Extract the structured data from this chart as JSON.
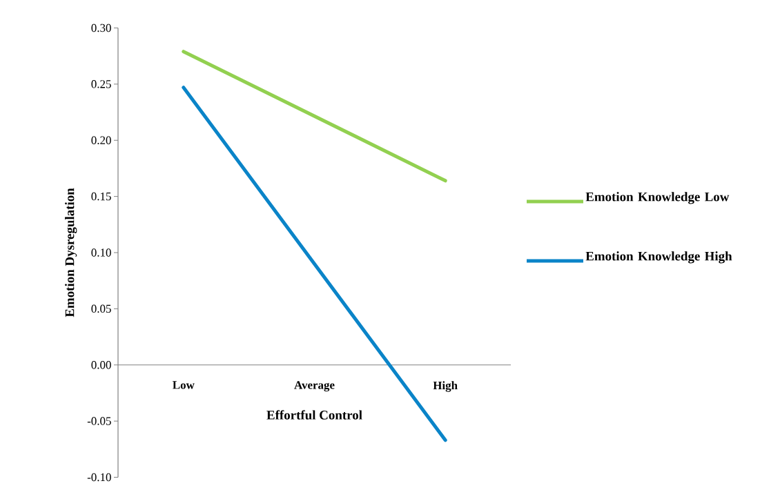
{
  "chart_data": {
    "type": "line",
    "xlabel": "Effortful Control",
    "ylabel": "Emotion Dysregulation",
    "categories": [
      "Low",
      "Average",
      "High"
    ],
    "series": [
      {
        "name": "Emotion Knowledge Low",
        "color": "#92d050",
        "values": [
          0.279,
          null,
          0.164
        ]
      },
      {
        "name": "Emotion Knowledge High",
        "color": "#0a84c8",
        "values": [
          0.247,
          null,
          -0.067
        ]
      }
    ],
    "ylim": [
      -0.1,
      0.3
    ],
    "yticks": [
      {
        "value": -0.1,
        "label": "-0.10"
      },
      {
        "value": -0.05,
        "label": "-0.05"
      },
      {
        "value": 0,
        "label": "0.00"
      },
      {
        "value": 0.05,
        "label": "0.05"
      },
      {
        "value": 0.1,
        "label": "0.10"
      },
      {
        "value": 0.15,
        "label": "0.15"
      },
      {
        "value": 0.2,
        "label": "0.20"
      },
      {
        "value": 0.25,
        "label": "0.25"
      },
      {
        "value": 0.3,
        "label": "0.30"
      }
    ],
    "legend": "right",
    "grid": false,
    "marker": "none",
    "line_style": "solid"
  }
}
